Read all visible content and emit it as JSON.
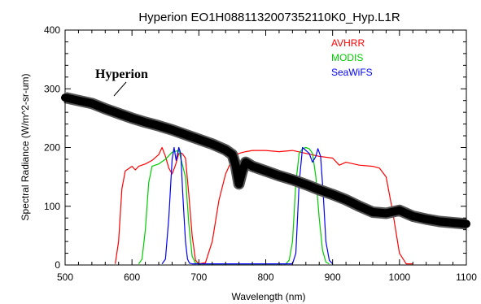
{
  "chart_data": {
    "type": "line",
    "title": "Hyperion EO1H0881132007352110K0_Hyp.L1R",
    "xlabel": "Wavelength (nm)",
    "ylabel": "Spectral Radiance (W/m^2-sr-um)",
    "xlim": [
      500,
      1100
    ],
    "ylim": [
      0,
      400
    ],
    "xticks": [
      500,
      600,
      700,
      800,
      900,
      1000,
      1100
    ],
    "yticks": [
      0,
      100,
      200,
      300,
      400
    ],
    "grid": false,
    "legend_position": "top-right",
    "legend": [
      {
        "label": "AVHRR",
        "color": "#ff0000"
      },
      {
        "label": "MODIS",
        "color": "#00cc00"
      },
      {
        "label": "SeaWiFS",
        "color": "#0000ff"
      }
    ],
    "annotations": [
      {
        "text": "Hyperion",
        "x": 535,
        "y": 320
      }
    ],
    "series": [
      {
        "name": "Hyperion",
        "color": "#000000",
        "x": [
          500,
          520,
          540,
          560,
          580,
          600,
          620,
          640,
          660,
          680,
          700,
          720,
          740,
          750,
          755,
          760,
          765,
          770,
          780,
          800,
          820,
          840,
          860,
          880,
          900,
          920,
          940,
          960,
          980,
          1000,
          1020,
          1040,
          1060,
          1080,
          1100
        ],
        "y": [
          285,
          280,
          275,
          266,
          258,
          250,
          243,
          237,
          230,
          222,
          214,
          206,
          196,
          188,
          170,
          138,
          160,
          175,
          168,
          160,
          152,
          145,
          137,
          128,
          120,
          111,
          100,
          90,
          88,
          93,
          83,
          78,
          74,
          72,
          70
        ]
      },
      {
        "name": "AVHRR",
        "color": "#ff0000",
        "x": [
          575,
          580,
          585,
          590,
          600,
          605,
          610,
          620,
          630,
          640,
          645,
          650,
          655,
          660,
          665,
          670,
          675,
          680,
          685,
          690,
          695,
          700,
          710,
          720,
          730,
          740,
          750,
          760,
          770,
          780,
          800,
          820,
          840,
          860,
          880,
          900,
          910,
          920,
          940,
          960,
          970,
          980,
          990,
          1000,
          1010,
          1020
        ],
        "y": [
          2,
          40,
          130,
          160,
          168,
          162,
          168,
          172,
          178,
          188,
          200,
          185,
          165,
          155,
          170,
          190,
          190,
          182,
          120,
          50,
          8,
          2,
          4,
          40,
          110,
          155,
          180,
          190,
          193,
          195,
          195,
          193,
          195,
          190,
          185,
          182,
          170,
          175,
          170,
          168,
          165,
          150,
          90,
          20,
          2,
          2
        ]
      },
      {
        "name": "MODIS",
        "color": "#00cc00",
        "x": [
          610,
          615,
          620,
          625,
          630,
          640,
          650,
          660,
          670,
          680,
          685,
          690,
          695,
          700,
          830,
          835,
          840,
          845,
          850,
          855,
          860,
          865,
          870,
          875,
          880,
          885,
          890,
          895
        ],
        "y": [
          2,
          10,
          60,
          140,
          168,
          172,
          180,
          192,
          195,
          150,
          70,
          15,
          3,
          2,
          2,
          8,
          40,
          140,
          190,
          198,
          200,
          198,
          190,
          150,
          80,
          25,
          5,
          2
        ]
      },
      {
        "name": "SeaWiFS",
        "color": "#0000ff",
        "x": [
          645,
          650,
          655,
          660,
          663,
          666,
          670,
          673,
          676,
          680,
          683,
          686,
          690,
          840,
          845,
          850,
          855,
          860,
          865,
          870,
          875,
          878,
          882,
          886,
          890,
          895,
          900
        ],
        "y": [
          2,
          10,
          80,
          180,
          200,
          178,
          200,
          190,
          120,
          40,
          10,
          3,
          2,
          2,
          20,
          140,
          200,
          195,
          190,
          175,
          185,
          198,
          185,
          120,
          40,
          8,
          2
        ]
      }
    ]
  }
}
